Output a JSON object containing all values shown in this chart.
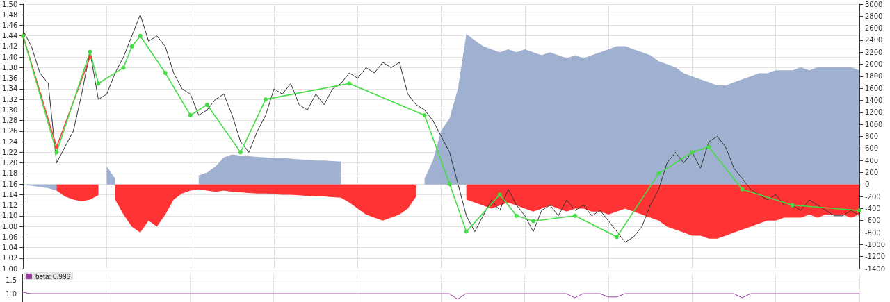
{
  "chart_data": [
    {
      "type": "line",
      "grid": true,
      "legend": false,
      "tick_labels": "y",
      "categories": [
        null,
        null,
        null,
        null,
        null,
        null,
        null,
        null,
        null,
        null,
        null,
        null,
        null,
        null,
        null,
        null,
        null,
        null,
        null,
        null,
        null,
        null,
        null,
        null,
        null,
        null,
        null,
        null,
        null,
        null,
        null,
        null,
        null,
        null,
        null,
        null,
        null,
        null,
        null,
        null,
        null,
        null,
        null,
        null,
        null,
        null,
        null,
        null,
        null,
        null,
        null,
        null,
        null,
        null,
        null,
        null,
        null,
        null,
        null,
        null,
        null,
        null,
        null,
        null,
        null,
        null,
        null,
        null,
        null,
        null,
        null,
        null,
        null,
        null,
        null,
        null,
        null,
        null,
        null,
        null,
        null,
        null,
        null,
        null,
        null,
        null,
        null,
        null,
        null,
        null,
        null,
        null,
        null,
        null,
        null,
        null,
        null,
        null,
        null,
        null,
        null
      ],
      "ylim": [
        1.0,
        1.5
      ],
      "yticks": [
        {
          "value": 1.0,
          "label": "1.00"
        },
        {
          "value": 1.02,
          "label": "1.02"
        },
        {
          "value": 1.04,
          "label": "1.04"
        },
        {
          "value": 1.06,
          "label": "1.06"
        },
        {
          "value": 1.08,
          "label": "1.08"
        },
        {
          "value": 1.1,
          "label": "1.10"
        },
        {
          "value": 1.12,
          "label": "1.12"
        },
        {
          "value": 1.14,
          "label": "1.14"
        },
        {
          "value": 1.16,
          "label": "1.16"
        },
        {
          "value": 1.18,
          "label": "1.18"
        },
        {
          "value": 1.2,
          "label": "1.20"
        },
        {
          "value": 1.22,
          "label": "1.22"
        },
        {
          "value": 1.24,
          "label": "1.24"
        },
        {
          "value": 1.26,
          "label": "1.26"
        },
        {
          "value": 1.28,
          "label": "1.28"
        },
        {
          "value": 1.3,
          "label": "1.30"
        },
        {
          "value": 1.32,
          "label": "1.32"
        },
        {
          "value": 1.34,
          "label": "1.34"
        },
        {
          "value": 1.36,
          "label": "1.36"
        },
        {
          "value": 1.38,
          "label": "1.38"
        },
        {
          "value": 1.4,
          "label": "1.40"
        },
        {
          "value": 1.42,
          "label": "1.42"
        },
        {
          "value": 1.44,
          "label": "1.44"
        },
        {
          "value": 1.46,
          "label": "1.46"
        },
        {
          "value": 1.48,
          "label": "1.48"
        },
        {
          "value": 1.5,
          "label": "1.50"
        }
      ],
      "y2lim": [
        -1400,
        3000
      ],
      "y2ticks": [
        -1400,
        -1200,
        -1000,
        -800,
        -600,
        -400,
        -200,
        0,
        200,
        400,
        600,
        800,
        1000,
        1200,
        1400,
        1600,
        1800,
        2000,
        2200,
        2400,
        2600,
        2800,
        3000
      ],
      "series": [
        {
          "type": "area",
          "axis": "y2",
          "color": "#9fb0d0",
          "values": [
            -10,
            -20,
            -40,
            -60,
            -100,
            null,
            null,
            null,
            null,
            null,
            300,
            100,
            null,
            null,
            null,
            null,
            null,
            null,
            null,
            null,
            null,
            150,
            200,
            300,
            450,
            500,
            480,
            470,
            460,
            450,
            440,
            440,
            430,
            420,
            410,
            400,
            400,
            390,
            380,
            null,
            null,
            null,
            null,
            null,
            null,
            null,
            null,
            null,
            100,
            400,
            900,
            1100,
            1600,
            2500,
            2400,
            2300,
            2250,
            2200,
            2250,
            2200,
            2250,
            2200,
            2150,
            2200,
            2150,
            2100,
            2150,
            2100,
            2150,
            2200,
            2250,
            2300,
            2300,
            2250,
            2200,
            2150,
            2050,
            2000,
            1950,
            1850,
            1800,
            1750,
            1700,
            1650,
            1650,
            1700,
            1750,
            1800,
            1850,
            1850,
            1900,
            1900,
            1900,
            1950,
            1900,
            1950,
            1950,
            1950,
            1950,
            1950,
            1900
          ]
        },
        {
          "type": "area",
          "axis": "y2",
          "color": "#ff3333",
          "values": [
            null,
            null,
            null,
            null,
            -100,
            -200,
            -250,
            -280,
            -250,
            -180,
            null,
            -250,
            -500,
            -700,
            -800,
            -600,
            -700,
            -500,
            -250,
            -150,
            -100,
            -80,
            -100,
            -120,
            -100,
            -120,
            -130,
            -140,
            -150,
            -150,
            -160,
            -170,
            -170,
            -180,
            -190,
            -200,
            -200,
            -210,
            -220,
            -300,
            -400,
            -500,
            -550,
            -600,
            -550,
            -500,
            -400,
            -200,
            null,
            null,
            null,
            null,
            null,
            -250,
            -300,
            -350,
            -400,
            -350,
            -300,
            -350,
            -400,
            -450,
            -400,
            -350,
            -400,
            -450,
            -400,
            -400,
            -450,
            -450,
            -500,
            -450,
            -400,
            -450,
            -500,
            -550,
            -600,
            -700,
            -750,
            -800,
            -850,
            -850,
            -900,
            -900,
            -850,
            -800,
            -750,
            -700,
            -650,
            -600,
            -600,
            -550,
            -550,
            -550,
            -500,
            -550,
            -500,
            -500,
            -500,
            -550,
            -500
          ]
        },
        {
          "color": "#333333",
          "values": [
            1.45,
            1.42,
            1.37,
            1.35,
            1.2,
            1.23,
            1.26,
            1.33,
            1.41,
            1.32,
            1.33,
            1.37,
            1.4,
            1.44,
            1.48,
            1.43,
            1.44,
            1.42,
            1.37,
            1.34,
            1.33,
            1.29,
            1.3,
            1.32,
            1.33,
            1.29,
            1.24,
            1.22,
            1.26,
            1.29,
            1.34,
            1.33,
            1.35,
            1.31,
            1.3,
            1.33,
            1.31,
            1.34,
            1.35,
            1.37,
            1.36,
            1.38,
            1.37,
            1.39,
            1.38,
            1.39,
            1.33,
            1.31,
            1.3,
            1.28,
            1.25,
            1.22,
            1.16,
            1.1,
            1.07,
            1.1,
            1.13,
            1.11,
            1.15,
            1.12,
            1.1,
            1.07,
            1.11,
            1.12,
            1.1,
            1.13,
            1.11,
            1.12,
            1.1,
            1.11,
            1.09,
            1.07,
            1.05,
            1.06,
            1.08,
            1.12,
            1.15,
            1.2,
            1.22,
            1.2,
            1.22,
            1.19,
            1.24,
            1.25,
            1.23,
            1.19,
            1.17,
            1.15,
            1.14,
            1.13,
            1.14,
            1.12,
            1.12,
            1.11,
            1.13,
            1.12,
            1.11,
            1.1,
            1.1,
            1.11,
            1.1
          ]
        },
        {
          "color": "#ff4040",
          "marker": "circle",
          "values": [
            1.44,
            null,
            null,
            null,
            1.23,
            null,
            null,
            null,
            1.4,
            null,
            null,
            null,
            null,
            null,
            null,
            null,
            null,
            null,
            null,
            null,
            null,
            null,
            null,
            null,
            null,
            null,
            null,
            null,
            null,
            null,
            null,
            null,
            null,
            null,
            null,
            null,
            null,
            null,
            null,
            null,
            null,
            null,
            null,
            null,
            null,
            null,
            null,
            null,
            null,
            null,
            null,
            null,
            null,
            null,
            null,
            null,
            null,
            null,
            null,
            null,
            null,
            null,
            null,
            null,
            null,
            null,
            null,
            null,
            null,
            null,
            null,
            null,
            null,
            null,
            null,
            null,
            null,
            null,
            null,
            null,
            null,
            null,
            null,
            null,
            null,
            null,
            null,
            null,
            null,
            null,
            null,
            null,
            null,
            null,
            null,
            null,
            null,
            null,
            null,
            null,
            null
          ]
        },
        {
          "color": "#44dd44",
          "marker": "circle",
          "values": [
            1.44,
            null,
            null,
            null,
            1.22,
            null,
            null,
            null,
            1.41,
            1.35,
            null,
            null,
            1.38,
            1.42,
            1.44,
            null,
            null,
            1.37,
            null,
            null,
            1.29,
            null,
            1.31,
            null,
            null,
            null,
            1.22,
            null,
            null,
            1.32,
            null,
            null,
            null,
            null,
            null,
            null,
            null,
            null,
            null,
            1.35,
            null,
            null,
            null,
            null,
            null,
            null,
            null,
            null,
            1.29,
            null,
            null,
            1.16,
            null,
            1.07,
            null,
            null,
            null,
            1.14,
            null,
            1.1,
            null,
            1.09,
            null,
            null,
            null,
            null,
            1.1,
            null,
            null,
            null,
            null,
            1.06,
            null,
            null,
            null,
            null,
            1.18,
            null,
            null,
            null,
            1.22,
            null,
            1.23,
            null,
            null,
            null,
            1.15,
            null,
            null,
            null,
            null,
            null,
            1.12,
            null,
            null,
            null,
            null,
            null,
            null,
            null,
            1.11
          ]
        }
      ]
    },
    {
      "type": "line",
      "grid": true,
      "legend": "top left",
      "tick_labels": "y",
      "categories": [
        null,
        null,
        null,
        null,
        null,
        null,
        null,
        null,
        null,
        null,
        null,
        null,
        null,
        null,
        null,
        null,
        null,
        null,
        null,
        null,
        null,
        null,
        null,
        null,
        null,
        null,
        null,
        null,
        null,
        null,
        null,
        null,
        null,
        null,
        null,
        null,
        null,
        null,
        null,
        null,
        null,
        null,
        null,
        null,
        null,
        null,
        null,
        null,
        null,
        null,
        null,
        null,
        null,
        null,
        null,
        null,
        null,
        null,
        null,
        null,
        null,
        null,
        null,
        null,
        null,
        null,
        null,
        null,
        null,
        null,
        null,
        null,
        null,
        null,
        null,
        null,
        null,
        null,
        null,
        null,
        null,
        null,
        null,
        null,
        null,
        null,
        null,
        null,
        null,
        null,
        null,
        null,
        null,
        null,
        null,
        null,
        null,
        null,
        null,
        null,
        null
      ],
      "ylim": [
        0.7,
        1.7
      ],
      "yticks": [
        {
          "value": 1.0,
          "label": "1.0"
        },
        {
          "value": 1.5,
          "label": "1.5"
        }
      ],
      "series": [
        {
          "name": "beta: 0.996",
          "color": "#a040a0",
          "values": [
            1.05,
            1,
            1,
            1,
            1,
            1,
            1,
            1,
            1,
            1,
            1,
            1,
            1,
            1,
            1,
            1,
            1,
            1,
            1,
            1,
            1,
            1,
            1,
            1,
            1,
            1,
            1,
            1,
            1,
            1,
            1,
            1,
            1,
            1,
            1,
            1,
            1,
            1,
            1,
            1,
            1,
            1,
            1,
            1,
            1,
            1,
            1,
            1,
            1,
            1,
            1,
            1,
            0.8,
            1,
            1,
            1,
            1,
            1,
            1,
            1,
            1,
            1,
            1,
            1,
            1,
            1,
            0.85,
            1,
            1,
            1,
            0.88,
            0.88,
            1,
            1,
            1,
            1,
            1,
            1,
            1,
            1,
            1,
            1,
            1,
            1,
            1,
            1,
            0.85,
            1,
            1,
            1,
            1,
            1,
            1,
            1,
            1,
            1,
            1,
            1,
            1,
            1,
            1
          ]
        }
      ]
    }
  ]
}
